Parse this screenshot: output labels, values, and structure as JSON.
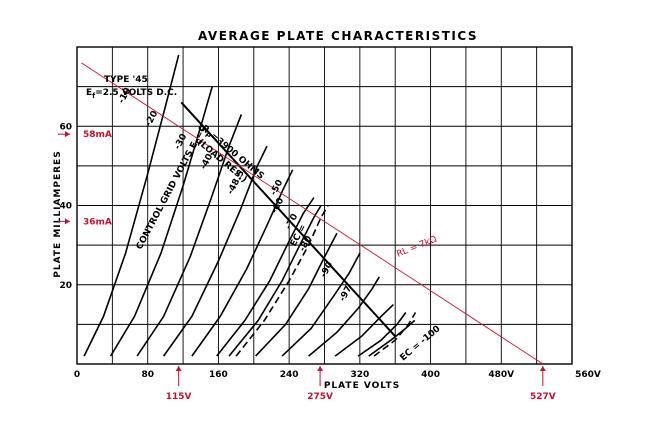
{
  "chart_data": {
    "type": "line",
    "title": "AVERAGE PLATE CHARACTERISTICS",
    "xlabel": "PLATE  VOLTS",
    "ylabel": "PLATE  MILLIAMPERES",
    "xlim": [
      0,
      560
    ],
    "ylim": [
      0,
      80
    ],
    "x_ticks": [
      "0",
      "80",
      "160",
      "240",
      "320",
      "400",
      "480V",
      "560V"
    ],
    "y_ticks": [
      "20",
      "40",
      "60"
    ],
    "grid": true,
    "tube_note": "TYPE '45",
    "filament_note_e": "E",
    "filament_note_sub": "f",
    "filament_note_rest": "=2.5 VOLTS D.C.",
    "control_grid_label": "CONTROL GRID VOLTS E",
    "control_grid_sub": "C",
    "control_grid_eq": "=0",
    "load_res_line1": "R",
    "load_res_sub": "P",
    "load_res_line1_rest": "=3900 OHMS",
    "load_res_line2": "(LOAD RES.)",
    "ec_mid_label": "EC =",
    "ec_end_label": "EC = -100",
    "load_line_label": "RL = 7kΩ",
    "annotations": {
      "y_marks": [
        {
          "label": "58mA",
          "value": 58
        },
        {
          "label": "36mA",
          "value": 36
        }
      ],
      "x_marks": [
        {
          "label": "115V",
          "value": 115
        },
        {
          "label": "275V",
          "value": 275
        },
        {
          "label": "527V",
          "value": 527
        }
      ]
    },
    "curve_labels": [
      "-10",
      "-20",
      "-30",
      "-40",
      "-48.5",
      "-50",
      "-60",
      "-70",
      "-80",
      "-90",
      "-97"
    ],
    "series": [
      {
        "name": "0",
        "x": [
          8,
          30,
          55,
          80,
          100,
          115
        ],
        "y": [
          2,
          12,
          28,
          48,
          65,
          78
        ]
      },
      {
        "name": "-10",
        "x": [
          38,
          65,
          95,
          120,
          140,
          153
        ],
        "y": [
          2,
          12,
          28,
          45,
          60,
          70
        ]
      },
      {
        "name": "-20",
        "x": [
          68,
          98,
          128,
          152,
          172,
          186
        ],
        "y": [
          2,
          12,
          27,
          42,
          55,
          63
        ]
      },
      {
        "name": "-30",
        "x": [
          98,
          130,
          160,
          185,
          204,
          215
        ],
        "y": [
          2,
          12,
          26,
          39,
          50,
          55
        ]
      },
      {
        "name": "-40",
        "x": [
          130,
          162,
          192,
          215,
          233,
          244
        ],
        "y": [
          2,
          12,
          24,
          35,
          44,
          49
        ]
      },
      {
        "name": "-48.5",
        "x": [
          158,
          190,
          218,
          240,
          256,
          268
        ],
        "y": [
          2,
          11,
          21,
          31,
          38,
          42
        ]
      },
      {
        "name": "-50",
        "x": [
          172,
          205,
          232,
          252,
          268,
          276
        ],
        "y": [
          2,
          11,
          21,
          30,
          37,
          40
        ]
      },
      {
        "name": "-60",
        "x": [
          202,
          236,
          262,
          280,
          294
        ],
        "y": [
          2,
          10,
          19,
          27,
          33
        ]
      },
      {
        "name": "-70",
        "x": [
          232,
          265,
          290,
          308,
          320
        ],
        "y": [
          2,
          9,
          17,
          23,
          28
        ]
      },
      {
        "name": "-80",
        "x": [
          262,
          294,
          318,
          334,
          342
        ],
        "y": [
          2,
          8,
          14,
          19,
          22
        ]
      },
      {
        "name": "-90",
        "x": [
          292,
          322,
          344,
          358
        ],
        "y": [
          2,
          7,
          12,
          15
        ]
      },
      {
        "name": "-97",
        "x": [
          318,
          344,
          362,
          372
        ],
        "y": [
          2,
          6,
          10,
          13
        ]
      },
      {
        "name": "-100",
        "x": [
          330,
          355,
          372,
          382
        ],
        "y": [
          2,
          6,
          9,
          11
        ]
      }
    ],
    "dashed_series": [
      {
        "name": "-48.5",
        "x": [
          180,
          212,
          240,
          262,
          276,
          284
        ],
        "y": [
          2,
          11,
          21,
          30,
          37,
          40
        ]
      },
      {
        "name": "-97",
        "x": [
          336,
          360,
          375,
          383
        ],
        "y": [
          2,
          6,
          10,
          13
        ]
      }
    ],
    "load_line_rp": {
      "x": [
        118,
        360
      ],
      "y": [
        66,
        7
      ]
    },
    "load_line_rl": {
      "x": [
        5,
        527
      ],
      "y": [
        76,
        0
      ]
    }
  }
}
